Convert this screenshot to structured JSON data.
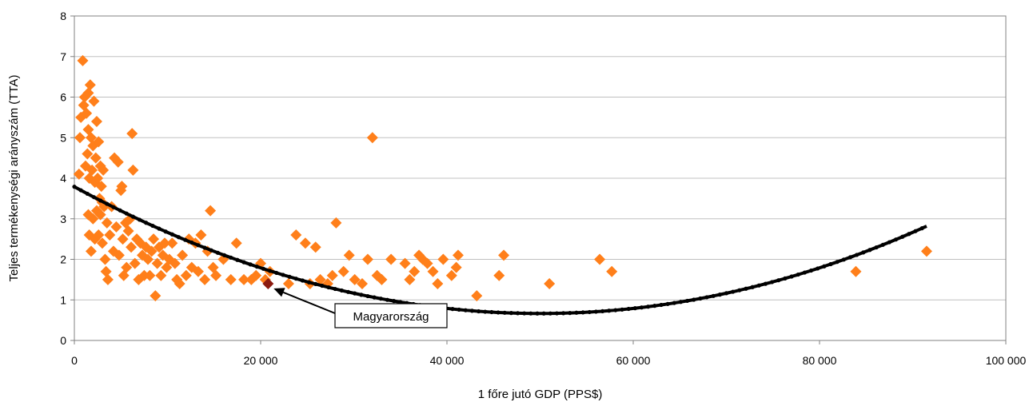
{
  "chart_data": {
    "type": "scatter",
    "title": "",
    "xlabel": "1 főre jutó GDP (PPS$)",
    "ylabel": "Teljes termékenységi arányszám  (TTA)",
    "xlim": [
      0,
      100000
    ],
    "ylim": [
      0,
      8
    ],
    "xticks": [
      0,
      20000,
      40000,
      60000,
      80000,
      100000
    ],
    "xtick_labels": [
      "0",
      "20 000",
      "40 000",
      "60 000",
      "80 000",
      "100 000"
    ],
    "yticks": [
      0,
      1,
      2,
      3,
      4,
      5,
      6,
      7,
      8
    ],
    "ytick_labels": [
      "0",
      "1",
      "2",
      "3",
      "4",
      "5",
      "6",
      "7",
      "8"
    ],
    "grid": "horizontal",
    "legend": "none",
    "colors": {
      "points": "#ff7f1a",
      "highlight": "#8b1a10",
      "trend": "#000000",
      "gridline": "#c0c0c0"
    },
    "series": [
      {
        "marker": "diamond",
        "color": "#ff7f1a",
        "points": [
          [
            500,
            4.1
          ],
          [
            600,
            5.0
          ],
          [
            700,
            5.5
          ],
          [
            900,
            6.9
          ],
          [
            1000,
            5.8
          ],
          [
            1100,
            6.0
          ],
          [
            1200,
            4.3
          ],
          [
            1300,
            5.6
          ],
          [
            1400,
            4.6
          ],
          [
            1500,
            6.1
          ],
          [
            1500,
            5.2
          ],
          [
            1600,
            4.0
          ],
          [
            1700,
            6.3
          ],
          [
            1800,
            5.0
          ],
          [
            1900,
            4.2
          ],
          [
            2000,
            4.8
          ],
          [
            2100,
            5.9
          ],
          [
            2200,
            3.9
          ],
          [
            2300,
            4.5
          ],
          [
            2400,
            5.4
          ],
          [
            2500,
            4.0
          ],
          [
            2600,
            4.9
          ],
          [
            2700,
            3.5
          ],
          [
            2800,
            4.3
          ],
          [
            2900,
            3.8
          ],
          [
            3000,
            3.4
          ],
          [
            3100,
            4.2
          ],
          [
            1500,
            3.1
          ],
          [
            1600,
            2.6
          ],
          [
            1800,
            2.2
          ],
          [
            2000,
            3.0
          ],
          [
            2200,
            2.5
          ],
          [
            2400,
            3.2
          ],
          [
            2600,
            2.6
          ],
          [
            2800,
            3.1
          ],
          [
            3000,
            2.4
          ],
          [
            3200,
            3.3
          ],
          [
            3300,
            2.0
          ],
          [
            3400,
            1.7
          ],
          [
            3500,
            2.9
          ],
          [
            3600,
            1.5
          ],
          [
            3800,
            2.6
          ],
          [
            4000,
            3.3
          ],
          [
            4200,
            2.2
          ],
          [
            4300,
            4.5
          ],
          [
            4500,
            2.8
          ],
          [
            4700,
            4.4
          ],
          [
            4800,
            2.1
          ],
          [
            5000,
            3.7
          ],
          [
            5100,
            3.8
          ],
          [
            5200,
            2.5
          ],
          [
            5300,
            1.6
          ],
          [
            5500,
            2.9
          ],
          [
            5600,
            1.8
          ],
          [
            5800,
            2.7
          ],
          [
            6000,
            3.0
          ],
          [
            6100,
            2.3
          ],
          [
            6200,
            5.1
          ],
          [
            6300,
            4.2
          ],
          [
            6500,
            1.9
          ],
          [
            6700,
            2.5
          ],
          [
            6900,
            1.5
          ],
          [
            7100,
            2.4
          ],
          [
            7300,
            2.1
          ],
          [
            7500,
            1.6
          ],
          [
            7700,
            2.3
          ],
          [
            7900,
            2.0
          ],
          [
            8100,
            1.6
          ],
          [
            8300,
            2.2
          ],
          [
            8500,
            2.5
          ],
          [
            8700,
            1.1
          ],
          [
            8900,
            1.9
          ],
          [
            9100,
            2.3
          ],
          [
            9300,
            1.6
          ],
          [
            9500,
            2.1
          ],
          [
            9700,
            2.4
          ],
          [
            9900,
            1.8
          ],
          [
            10200,
            2.0
          ],
          [
            10500,
            2.4
          ],
          [
            10800,
            1.9
          ],
          [
            11000,
            1.5
          ],
          [
            11300,
            1.4
          ],
          [
            11600,
            2.1
          ],
          [
            12000,
            1.6
          ],
          [
            12300,
            2.5
          ],
          [
            12600,
            1.8
          ],
          [
            13000,
            2.4
          ],
          [
            13300,
            1.7
          ],
          [
            13600,
            2.6
          ],
          [
            14000,
            1.5
          ],
          [
            14300,
            2.2
          ],
          [
            14600,
            3.2
          ],
          [
            14900,
            1.8
          ],
          [
            15200,
            1.6
          ],
          [
            16000,
            2.0
          ],
          [
            16800,
            1.5
          ],
          [
            17400,
            2.4
          ],
          [
            18200,
            1.5
          ],
          [
            19000,
            1.5
          ],
          [
            19500,
            1.6
          ],
          [
            20000,
            1.9
          ],
          [
            20500,
            1.5
          ],
          [
            21000,
            1.7
          ],
          [
            23000,
            1.4
          ],
          [
            23800,
            2.6
          ],
          [
            24800,
            2.4
          ],
          [
            25300,
            1.4
          ],
          [
            25900,
            2.3
          ],
          [
            26400,
            1.5
          ],
          [
            27200,
            1.4
          ],
          [
            27700,
            1.6
          ],
          [
            28100,
            2.9
          ],
          [
            28900,
            1.7
          ],
          [
            29500,
            2.1
          ],
          [
            30100,
            1.5
          ],
          [
            30900,
            1.4
          ],
          [
            31500,
            2.0
          ],
          [
            32000,
            5.0
          ],
          [
            32500,
            1.6
          ],
          [
            33000,
            1.5
          ],
          [
            34000,
            2.0
          ],
          [
            35500,
            1.9
          ],
          [
            36000,
            1.5
          ],
          [
            36500,
            1.7
          ],
          [
            37000,
            2.1
          ],
          [
            37400,
            2.0
          ],
          [
            37900,
            1.9
          ],
          [
            38500,
            1.7
          ],
          [
            39000,
            1.4
          ],
          [
            39600,
            2.0
          ],
          [
            40500,
            1.6
          ],
          [
            41000,
            1.8
          ],
          [
            41200,
            2.1
          ],
          [
            43200,
            1.1
          ],
          [
            45600,
            1.6
          ],
          [
            46100,
            2.1
          ],
          [
            51000,
            1.4
          ],
          [
            56400,
            2.0
          ],
          [
            57700,
            1.7
          ],
          [
            83900,
            1.7
          ],
          [
            91500,
            2.2
          ]
        ]
      }
    ],
    "highlight_point": {
      "name": "Magyarország",
      "x": 20800,
      "y": 1.4
    },
    "trendline": {
      "type": "polynomial",
      "coefficients": [
        3.79,
        -0.000125,
        1.25e-09
      ],
      "x_range": [
        0,
        91500
      ]
    },
    "annotations": [
      {
        "text": "Magyarország",
        "target": "highlight_point"
      }
    ]
  }
}
